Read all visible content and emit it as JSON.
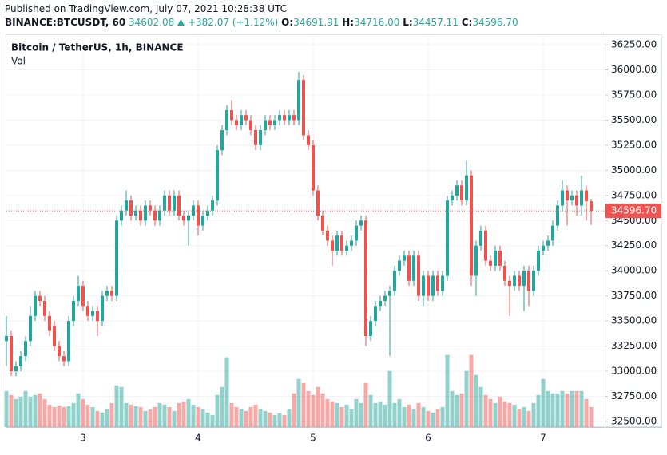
{
  "header": {
    "published": "Published on TradingView.com, July 07, 2021 10:28:38 UTC",
    "symbol": "BINANCE:BTCUSDT, 60",
    "price": "34602.08",
    "change": "+382.07 (+1.12%)",
    "ohlc": [
      {
        "label": "O:",
        "value": "34691.91"
      },
      {
        "label": "H:",
        "value": "34716.00"
      },
      {
        "label": "L:",
        "value": "34457.11"
      },
      {
        "label": "C:",
        "value": "34596.70"
      }
    ]
  },
  "chart_data": {
    "type": "candlestick",
    "title": "Bitcoin / TetherUS, 1h, BINANCE",
    "volume_label": "Vol",
    "up_color": "#26a69a",
    "down_color": "#ef5350",
    "grid": true,
    "categories": [
      null,
      null,
      null,
      null,
      null,
      null,
      null,
      null,
      null,
      null,
      null,
      null,
      null,
      null,
      null,
      null,
      "3",
      null,
      null,
      null,
      null,
      null,
      null,
      null,
      null,
      null,
      null,
      null,
      null,
      null,
      null,
      null,
      null,
      null,
      null,
      null,
      null,
      null,
      null,
      null,
      "4",
      null,
      null,
      null,
      null,
      null,
      null,
      null,
      null,
      null,
      null,
      null,
      null,
      null,
      null,
      null,
      null,
      null,
      null,
      null,
      null,
      null,
      null,
      null,
      "5",
      null,
      null,
      null,
      null,
      null,
      null,
      null,
      null,
      null,
      null,
      null,
      null,
      null,
      null,
      null,
      null,
      null,
      null,
      null,
      null,
      null,
      null,
      null,
      "6",
      null,
      null,
      null,
      null,
      null,
      null,
      null,
      null,
      null,
      null,
      null,
      null,
      null,
      null,
      null,
      null,
      null,
      null,
      null,
      null,
      null,
      null,
      null,
      "7",
      null,
      null,
      null,
      null,
      null,
      null,
      null,
      null,
      null,
      null
    ],
    "open": [
      33300,
      33350,
      33000,
      33050,
      33150,
      33300,
      33550,
      33750,
      33700,
      33550,
      33450,
      33250,
      33150,
      33100,
      33500,
      33700,
      33850,
      33650,
      33550,
      33600,
      33500,
      33750,
      33800,
      33750,
      34500,
      34600,
      34700,
      34550,
      34600,
      34500,
      34650,
      34600,
      34500,
      34600,
      34750,
      34600,
      34750,
      34550,
      34500,
      34550,
      34650,
      34450,
      34550,
      34600,
      34700,
      35200,
      35400,
      35600,
      35500,
      35450,
      35550,
      35500,
      35400,
      35250,
      35400,
      35500,
      35450,
      35500,
      35550,
      35500,
      35550,
      35500,
      35900,
      35350,
      35250,
      34800,
      34550,
      34400,
      34300,
      34200,
      34350,
      34200,
      34250,
      34300,
      34450,
      34500,
      33350,
      33500,
      33650,
      33700,
      33750,
      33800,
      34000,
      34100,
      34150,
      33900,
      34150,
      33750,
      33950,
      33750,
      33950,
      33800,
      33950,
      34700,
      34750,
      34850,
      34700,
      34950,
      33950,
      34250,
      34400,
      34100,
      34050,
      34200,
      34050,
      33900,
      33850,
      33950,
      33850,
      34000,
      33800,
      34000,
      34200,
      34250,
      34300,
      34450,
      34650,
      34800,
      34700,
      34750,
      34650,
      34800,
      34691.91
    ],
    "high": [
      33550,
      33400,
      33100,
      33200,
      33350,
      33650,
      33800,
      33800,
      33750,
      33600,
      33500,
      33300,
      33200,
      33550,
      33750,
      33950,
      33900,
      33700,
      33650,
      33650,
      33800,
      33850,
      33850,
      34550,
      34650,
      34800,
      34750,
      34650,
      34650,
      34700,
      34700,
      34650,
      34650,
      34800,
      34800,
      34800,
      34800,
      34600,
      34600,
      34700,
      34700,
      34600,
      34650,
      34750,
      35250,
      35450,
      35650,
      35700,
      35550,
      35600,
      35600,
      35550,
      35450,
      35450,
      35550,
      35550,
      35550,
      35600,
      35600,
      35600,
      35600,
      35980,
      35950,
      35400,
      35300,
      34850,
      34600,
      34450,
      34350,
      34400,
      34400,
      34300,
      34350,
      34500,
      34550,
      34550,
      33550,
      33700,
      33750,
      33800,
      33850,
      34050,
      34150,
      34200,
      34200,
      34200,
      34200,
      34000,
      34000,
      34000,
      34000,
      34000,
      34750,
      34800,
      34900,
      34900,
      35100,
      35000,
      34300,
      34450,
      34450,
      34150,
      34250,
      34250,
      34100,
      33950,
      34000,
      34000,
      34050,
      34050,
      34050,
      34250,
      34300,
      34350,
      34500,
      34700,
      34900,
      34850,
      34800,
      34800,
      34950,
      34850,
      34716
    ],
    "low": [
      33050,
      32950,
      32950,
      33000,
      33100,
      33250,
      33500,
      33650,
      33500,
      33350,
      33200,
      33100,
      33050,
      33050,
      33450,
      33650,
      33600,
      33500,
      33500,
      33350,
      33450,
      33700,
      33700,
      33700,
      34450,
      34550,
      34500,
      34500,
      34450,
      34450,
      34550,
      34450,
      34450,
      34550,
      34550,
      34550,
      34500,
      34450,
      34250,
      34500,
      34350,
      34400,
      34500,
      34550,
      34650,
      35150,
      35350,
      35450,
      35400,
      35400,
      35450,
      35350,
      35200,
      35200,
      35350,
      35400,
      35400,
      35450,
      35450,
      35450,
      35450,
      35450,
      35300,
      35200,
      34750,
      34500,
      34350,
      34250,
      34050,
      34150,
      34150,
      34150,
      34200,
      34250,
      34400,
      33250,
      33300,
      33450,
      33600,
      33650,
      33150,
      33750,
      33950,
      34050,
      33850,
      33850,
      33700,
      33650,
      33700,
      33700,
      33750,
      33750,
      33900,
      34650,
      34700,
      34650,
      34650,
      33850,
      33750,
      34200,
      34050,
      34000,
      34000,
      34000,
      33850,
      33550,
      33800,
      33800,
      33600,
      33650,
      33750,
      33950,
      34150,
      34200,
      34250,
      34400,
      34600,
      34450,
      34650,
      34550,
      34550,
      34500,
      34457.11
    ],
    "close": [
      33350,
      33000,
      33050,
      33150,
      33300,
      33550,
      33750,
      33700,
      33550,
      33400,
      33250,
      33150,
      33100,
      33500,
      33700,
      33850,
      33650,
      33550,
      33600,
      33500,
      33750,
      33800,
      33750,
      34500,
      34600,
      34700,
      34550,
      34600,
      34500,
      34650,
      34600,
      34500,
      34600,
      34750,
      34600,
      34750,
      34550,
      34500,
      34550,
      34650,
      34450,
      34550,
      34600,
      34700,
      35200,
      35400,
      35600,
      35500,
      35450,
      35550,
      35500,
      35400,
      35250,
      35400,
      35500,
      35450,
      35500,
      35550,
      35500,
      35550,
      35500,
      35900,
      35350,
      35250,
      34800,
      34550,
      34400,
      34300,
      34200,
      34350,
      34200,
      34250,
      34300,
      34450,
      34500,
      33350,
      33500,
      33650,
      33700,
      33750,
      33800,
      34000,
      34100,
      34150,
      33900,
      34150,
      33750,
      33950,
      33750,
      33950,
      33800,
      33950,
      34700,
      34750,
      34850,
      34700,
      34950,
      33950,
      34250,
      34400,
      34100,
      34050,
      34200,
      34050,
      33900,
      33850,
      33950,
      33850,
      34000,
      33800,
      34000,
      34200,
      34250,
      34300,
      34450,
      34650,
      34800,
      34700,
      34750,
      34650,
      34800,
      34691.91,
      34596.7
    ],
    "volume": [
      45,
      40,
      35,
      38,
      45,
      38,
      40,
      42,
      35,
      28,
      25,
      27,
      25,
      26,
      30,
      42,
      35,
      28,
      25,
      20,
      18,
      22,
      30,
      52,
      50,
      30,
      28,
      26,
      25,
      20,
      22,
      25,
      30,
      28,
      25,
      20,
      30,
      32,
      35,
      28,
      25,
      22,
      18,
      15,
      40,
      50,
      87,
      30,
      25,
      22,
      20,
      25,
      28,
      22,
      20,
      18,
      15,
      17,
      15,
      22,
      42,
      60,
      55,
      45,
      40,
      50,
      42,
      35,
      32,
      30,
      25,
      28,
      22,
      35,
      30,
      55,
      40,
      30,
      32,
      28,
      70,
      30,
      35,
      25,
      28,
      22,
      30,
      25,
      20,
      18,
      22,
      25,
      90,
      45,
      40,
      42,
      70,
      90,
      65,
      50,
      40,
      35,
      30,
      38,
      32,
      30,
      28,
      22,
      25,
      20,
      30,
      40,
      60,
      45,
      42,
      42,
      45,
      42,
      45,
      45,
      45,
      35,
      25
    ],
    "volume_ylim": [
      0,
      490
    ],
    "ylim": [
      32444,
      36354
    ],
    "yticks": [
      {
        "value": 32500,
        "label": "32500.00"
      },
      {
        "value": 32750,
        "label": "32750.00"
      },
      {
        "value": 33000,
        "label": "33000.00"
      },
      {
        "value": 33250,
        "label": "33250.00"
      },
      {
        "value": 33500,
        "label": "33500.00"
      },
      {
        "value": 33750,
        "label": "33750.00"
      },
      {
        "value": 34000,
        "label": "34000.00"
      },
      {
        "value": 34250,
        "label": "34250.00"
      },
      {
        "value": 34500,
        "label": "34500.00"
      },
      {
        "value": 34750,
        "label": "34750.00"
      },
      {
        "value": 35000,
        "label": "35000.00"
      },
      {
        "value": 35250,
        "label": "35250.00"
      },
      {
        "value": 35500,
        "label": "35500.00"
      },
      {
        "value": 35750,
        "label": "35750.00"
      },
      {
        "value": 36000,
        "label": "36000.00"
      },
      {
        "value": 36250,
        "label": "36250.00"
      }
    ],
    "last_price": {
      "value": 34596.7,
      "label": "34596.70"
    }
  }
}
